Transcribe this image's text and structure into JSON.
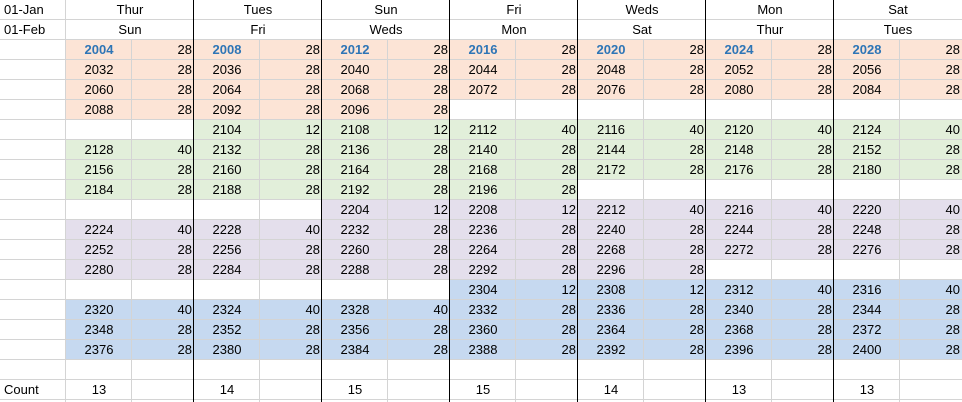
{
  "corner": {
    "row1": "01-Jan",
    "row2": "01-Feb"
  },
  "colors": {
    "grid": "#d4d4d4",
    "thick_border": "#000000",
    "peach": "#fce4d6",
    "green": "#e2efda",
    "lavender": "#e4dfec",
    "blue": "#c6d9f0",
    "highlight_text": "#2e75b6"
  },
  "footer": {
    "label": "Count"
  },
  "columns": [
    {
      "jan": "Thur",
      "feb": "Sun",
      "count": "13",
      "rows": [
        {
          "r": 2,
          "y": "2004",
          "v": "28",
          "c": "peach",
          "hl": true
        },
        {
          "r": 3,
          "y": "2032",
          "v": "28",
          "c": "peach"
        },
        {
          "r": 4,
          "y": "2060",
          "v": "28",
          "c": "peach"
        },
        {
          "r": 5,
          "y": "2088",
          "v": "28",
          "c": "peach"
        },
        {
          "r": 7,
          "y": "2128",
          "v": "40",
          "c": "green"
        },
        {
          "r": 8,
          "y": "2156",
          "v": "28",
          "c": "green"
        },
        {
          "r": 9,
          "y": "2184",
          "v": "28",
          "c": "green"
        },
        {
          "r": 11,
          "y": "2224",
          "v": "40",
          "c": "lavender"
        },
        {
          "r": 12,
          "y": "2252",
          "v": "28",
          "c": "lavender"
        },
        {
          "r": 13,
          "y": "2280",
          "v": "28",
          "c": "lavender"
        },
        {
          "r": 15,
          "y": "2320",
          "v": "40",
          "c": "blue"
        },
        {
          "r": 16,
          "y": "2348",
          "v": "28",
          "c": "blue"
        },
        {
          "r": 17,
          "y": "2376",
          "v": "28",
          "c": "blue"
        }
      ]
    },
    {
      "jan": "Tues",
      "feb": "Fri",
      "count": "14",
      "rows": [
        {
          "r": 2,
          "y": "2008",
          "v": "28",
          "c": "peach",
          "hl": true
        },
        {
          "r": 3,
          "y": "2036",
          "v": "28",
          "c": "peach"
        },
        {
          "r": 4,
          "y": "2064",
          "v": "28",
          "c": "peach"
        },
        {
          "r": 5,
          "y": "2092",
          "v": "28",
          "c": "peach"
        },
        {
          "r": 6,
          "y": "2104",
          "v": "12",
          "c": "green"
        },
        {
          "r": 7,
          "y": "2132",
          "v": "28",
          "c": "green"
        },
        {
          "r": 8,
          "y": "2160",
          "v": "28",
          "c": "green"
        },
        {
          "r": 9,
          "y": "2188",
          "v": "28",
          "c": "green"
        },
        {
          "r": 11,
          "y": "2228",
          "v": "40",
          "c": "lavender"
        },
        {
          "r": 12,
          "y": "2256",
          "v": "28",
          "c": "lavender"
        },
        {
          "r": 13,
          "y": "2284",
          "v": "28",
          "c": "lavender"
        },
        {
          "r": 15,
          "y": "2324",
          "v": "40",
          "c": "blue"
        },
        {
          "r": 16,
          "y": "2352",
          "v": "28",
          "c": "blue"
        },
        {
          "r": 17,
          "y": "2380",
          "v": "28",
          "c": "blue"
        }
      ]
    },
    {
      "jan": "Sun",
      "feb": "Weds",
      "count": "15",
      "rows": [
        {
          "r": 2,
          "y": "2012",
          "v": "28",
          "c": "peach",
          "hl": true
        },
        {
          "r": 3,
          "y": "2040",
          "v": "28",
          "c": "peach"
        },
        {
          "r": 4,
          "y": "2068",
          "v": "28",
          "c": "peach"
        },
        {
          "r": 5,
          "y": "2096",
          "v": "28",
          "c": "peach"
        },
        {
          "r": 6,
          "y": "2108",
          "v": "12",
          "c": "green"
        },
        {
          "r": 7,
          "y": "2136",
          "v": "28",
          "c": "green"
        },
        {
          "r": 8,
          "y": "2164",
          "v": "28",
          "c": "green"
        },
        {
          "r": 9,
          "y": "2192",
          "v": "28",
          "c": "green"
        },
        {
          "r": 10,
          "y": "2204",
          "v": "12",
          "c": "lavender"
        },
        {
          "r": 11,
          "y": "2232",
          "v": "28",
          "c": "lavender"
        },
        {
          "r": 12,
          "y": "2260",
          "v": "28",
          "c": "lavender"
        },
        {
          "r": 13,
          "y": "2288",
          "v": "28",
          "c": "lavender"
        },
        {
          "r": 15,
          "y": "2328",
          "v": "40",
          "c": "blue"
        },
        {
          "r": 16,
          "y": "2356",
          "v": "28",
          "c": "blue"
        },
        {
          "r": 17,
          "y": "2384",
          "v": "28",
          "c": "blue"
        }
      ]
    },
    {
      "jan": "Fri",
      "feb": "Mon",
      "count": "15",
      "rows": [
        {
          "r": 2,
          "y": "2016",
          "v": "28",
          "c": "peach",
          "hl": true
        },
        {
          "r": 3,
          "y": "2044",
          "v": "28",
          "c": "peach"
        },
        {
          "r": 4,
          "y": "2072",
          "v": "28",
          "c": "peach"
        },
        {
          "r": 6,
          "y": "2112",
          "v": "40",
          "c": "green"
        },
        {
          "r": 7,
          "y": "2140",
          "v": "28",
          "c": "green"
        },
        {
          "r": 8,
          "y": "2168",
          "v": "28",
          "c": "green"
        },
        {
          "r": 9,
          "y": "2196",
          "v": "28",
          "c": "green"
        },
        {
          "r": 10,
          "y": "2208",
          "v": "12",
          "c": "lavender"
        },
        {
          "r": 11,
          "y": "2236",
          "v": "28",
          "c": "lavender"
        },
        {
          "r": 12,
          "y": "2264",
          "v": "28",
          "c": "lavender"
        },
        {
          "r": 13,
          "y": "2292",
          "v": "28",
          "c": "lavender"
        },
        {
          "r": 14,
          "y": "2304",
          "v": "12",
          "c": "blue"
        },
        {
          "r": 15,
          "y": "2332",
          "v": "28",
          "c": "blue"
        },
        {
          "r": 16,
          "y": "2360",
          "v": "28",
          "c": "blue"
        },
        {
          "r": 17,
          "y": "2388",
          "v": "28",
          "c": "blue"
        }
      ]
    },
    {
      "jan": "Weds",
      "feb": "Sat",
      "count": "14",
      "rows": [
        {
          "r": 2,
          "y": "2020",
          "v": "28",
          "c": "peach",
          "hl": true
        },
        {
          "r": 3,
          "y": "2048",
          "v": "28",
          "c": "peach"
        },
        {
          "r": 4,
          "y": "2076",
          "v": "28",
          "c": "peach"
        },
        {
          "r": 6,
          "y": "2116",
          "v": "40",
          "c": "green"
        },
        {
          "r": 7,
          "y": "2144",
          "v": "28",
          "c": "green"
        },
        {
          "r": 8,
          "y": "2172",
          "v": "28",
          "c": "green"
        },
        {
          "r": 10,
          "y": "2212",
          "v": "40",
          "c": "lavender"
        },
        {
          "r": 11,
          "y": "2240",
          "v": "28",
          "c": "lavender"
        },
        {
          "r": 12,
          "y": "2268",
          "v": "28",
          "c": "lavender"
        },
        {
          "r": 13,
          "y": "2296",
          "v": "28",
          "c": "lavender"
        },
        {
          "r": 14,
          "y": "2308",
          "v": "12",
          "c": "blue"
        },
        {
          "r": 15,
          "y": "2336",
          "v": "28",
          "c": "blue"
        },
        {
          "r": 16,
          "y": "2364",
          "v": "28",
          "c": "blue"
        },
        {
          "r": 17,
          "y": "2392",
          "v": "28",
          "c": "blue"
        }
      ]
    },
    {
      "jan": "Mon",
      "feb": "Thur",
      "count": "13",
      "rows": [
        {
          "r": 2,
          "y": "2024",
          "v": "28",
          "c": "peach",
          "hl": true
        },
        {
          "r": 3,
          "y": "2052",
          "v": "28",
          "c": "peach"
        },
        {
          "r": 4,
          "y": "2080",
          "v": "28",
          "c": "peach"
        },
        {
          "r": 6,
          "y": "2120",
          "v": "40",
          "c": "green"
        },
        {
          "r": 7,
          "y": "2148",
          "v": "28",
          "c": "green"
        },
        {
          "r": 8,
          "y": "2176",
          "v": "28",
          "c": "green"
        },
        {
          "r": 10,
          "y": "2216",
          "v": "40",
          "c": "lavender"
        },
        {
          "r": 11,
          "y": "2244",
          "v": "28",
          "c": "lavender"
        },
        {
          "r": 12,
          "y": "2272",
          "v": "28",
          "c": "lavender"
        },
        {
          "r": 14,
          "y": "2312",
          "v": "40",
          "c": "blue"
        },
        {
          "r": 15,
          "y": "2340",
          "v": "28",
          "c": "blue"
        },
        {
          "r": 16,
          "y": "2368",
          "v": "28",
          "c": "blue"
        },
        {
          "r": 17,
          "y": "2396",
          "v": "28",
          "c": "blue"
        }
      ]
    },
    {
      "jan": "Sat",
      "feb": "Tues",
      "count": "13",
      "rows": [
        {
          "r": 2,
          "y": "2028",
          "v": "28",
          "c": "peach",
          "hl": true
        },
        {
          "r": 3,
          "y": "2056",
          "v": "28",
          "c": "peach"
        },
        {
          "r": 4,
          "y": "2084",
          "v": "28",
          "c": "peach"
        },
        {
          "r": 6,
          "y": "2124",
          "v": "40",
          "c": "green"
        },
        {
          "r": 7,
          "y": "2152",
          "v": "28",
          "c": "green"
        },
        {
          "r": 8,
          "y": "2180",
          "v": "28",
          "c": "green"
        },
        {
          "r": 10,
          "y": "2220",
          "v": "40",
          "c": "lavender"
        },
        {
          "r": 11,
          "y": "2248",
          "v": "28",
          "c": "lavender"
        },
        {
          "r": 12,
          "y": "2276",
          "v": "28",
          "c": "lavender"
        },
        {
          "r": 14,
          "y": "2316",
          "v": "40",
          "c": "blue"
        },
        {
          "r": 15,
          "y": "2344",
          "v": "28",
          "c": "blue"
        },
        {
          "r": 16,
          "y": "2372",
          "v": "28",
          "c": "blue"
        },
        {
          "r": 17,
          "y": "2400",
          "v": "28",
          "c": "blue"
        }
      ]
    }
  ]
}
